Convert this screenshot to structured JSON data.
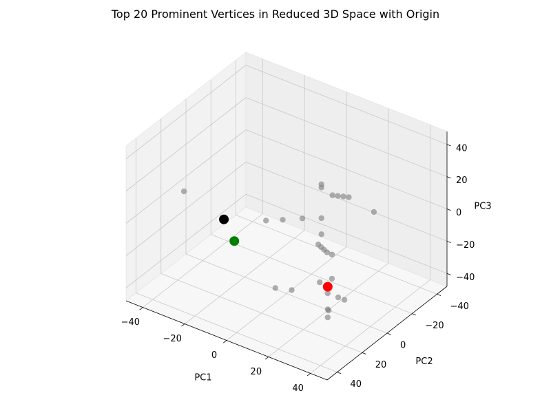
{
  "chart_data": {
    "type": "scatter",
    "projection": "3d",
    "title": "Top 20 Prominent Vertices in Reduced 3D Space with Origin",
    "xlabel": "PC1",
    "ylabel": "PC2",
    "zlabel": "PC3",
    "xlim": [
      -48,
      48
    ],
    "ylim": [
      -48,
      48
    ],
    "zlim": [
      -48,
      48
    ],
    "xticks": [
      -40,
      -20,
      0,
      20,
      40
    ],
    "yticks": [
      -40,
      -20,
      0,
      20,
      40
    ],
    "zticks": [
      -40,
      -20,
      0,
      20,
      40
    ],
    "grid": true,
    "legend": "none",
    "colors": {
      "points": "#808080",
      "highlight_black": "#000000",
      "highlight_green": "#008000",
      "highlight_red": "#ff0000",
      "pane": "#f2f2f2",
      "grid": "#c8c8c8"
    },
    "series": [
      {
        "color": "#808080",
        "points": [
          [
            -40,
            15,
            4
          ],
          [
            6,
            19,
            -30
          ],
          [
            12,
            16,
            -30
          ],
          [
            -8,
            3,
            -5
          ],
          [
            -3,
            -2,
            -5
          ],
          [
            4,
            -6,
            -3
          ],
          [
            10,
            -20,
            6
          ],
          [
            12,
            -21,
            6
          ],
          [
            14,
            -22,
            6
          ],
          [
            16,
            -23,
            6
          ],
          [
            28,
            -23,
            3
          ],
          [
            23,
            12,
            -22
          ],
          [
            25,
            14,
            10
          ],
          [
            25,
            14,
            20
          ],
          [
            25,
            14,
            39
          ],
          [
            25,
            14,
            41
          ],
          [
            30,
            14,
            0
          ],
          [
            30,
            14,
            -15
          ],
          [
            36,
            14,
            -25
          ],
          [
            33,
            14,
            -25
          ],
          [
            28,
            14,
            -25
          ],
          [
            28,
            14,
            -35
          ],
          [
            28,
            14,
            -40
          ],
          [
            36,
            35,
            22
          ],
          [
            38,
            36,
            22
          ],
          [
            40,
            37,
            22
          ],
          [
            42,
            38,
            22
          ],
          [
            32,
            20,
            -30
          ]
        ]
      },
      {
        "color": "#ff0000",
        "points": [
          [
            28,
            14,
            -21
          ]
        ]
      },
      {
        "color": "#000000",
        "points": [
          [
            -12,
            30,
            10
          ]
        ]
      },
      {
        "color": "#008000",
        "points": [
          [
            -13,
            20,
            -10
          ]
        ]
      }
    ]
  }
}
